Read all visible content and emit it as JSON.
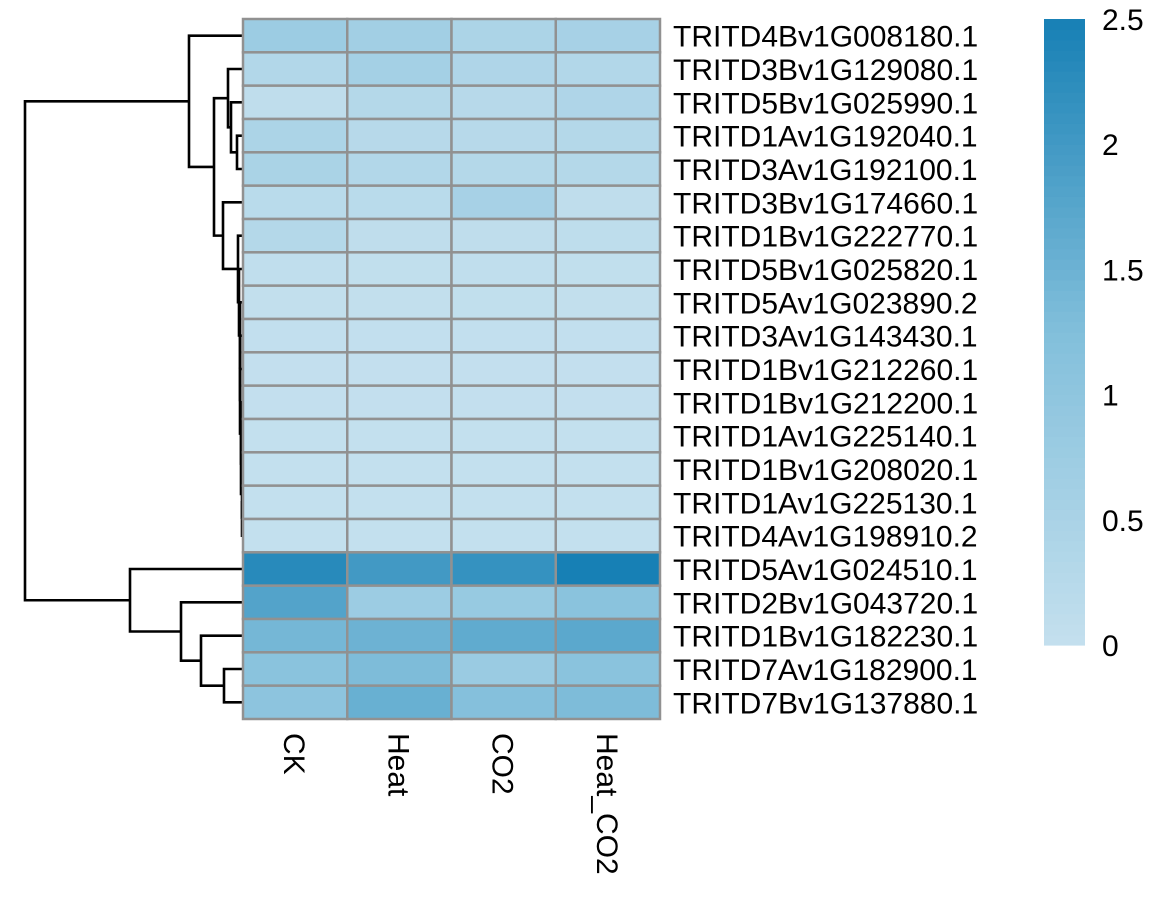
{
  "chart_data": {
    "type": "heatmap",
    "title": "",
    "columns": [
      "CK",
      "Heat",
      "CO2",
      "Heat_CO2"
    ],
    "rows": [
      "TRITD4Bv1G008180.1",
      "TRITD3Bv1G129080.1",
      "TRITD5Bv1G025990.1",
      "TRITD1Av1G192040.1",
      "TRITD3Av1G192100.1",
      "TRITD3Bv1G174660.1",
      "TRITD1Bv1G222770.1",
      "TRITD5Bv1G025820.1",
      "TRITD5Av1G023890.2",
      "TRITD3Av1G143430.1",
      "TRITD1Bv1G212260.1",
      "TRITD1Bv1G212200.1",
      "TRITD1Av1G225140.1",
      "TRITD1Bv1G208020.1",
      "TRITD1Av1G225130.1",
      "TRITD4Av1G198910.2",
      "TRITD5Av1G024510.1",
      "TRITD2Bv1G043720.1",
      "TRITD1Bv1G182230.1",
      "TRITD7Av1G182900.1",
      "TRITD7Bv1G137880.1"
    ],
    "values": [
      [
        0.75,
        0.65,
        0.45,
        0.55
      ],
      [
        0.35,
        0.6,
        0.4,
        0.35
      ],
      [
        0.1,
        0.3,
        0.25,
        0.4
      ],
      [
        0.45,
        0.25,
        0.25,
        0.3
      ],
      [
        0.5,
        0.35,
        0.3,
        0.3
      ],
      [
        0.2,
        0.2,
        0.55,
        0.1
      ],
      [
        0.3,
        0.1,
        0.1,
        0.12
      ],
      [
        0.08,
        0.05,
        0.08,
        0.05
      ],
      [
        0.04,
        0.04,
        0.05,
        0.04
      ],
      [
        0.03,
        0.03,
        0.03,
        0.03
      ],
      [
        0.02,
        0.02,
        0.02,
        0.02
      ],
      [
        0.02,
        0.02,
        0.02,
        0.02
      ],
      [
        0.01,
        0.01,
        0.01,
        0.01
      ],
      [
        0.01,
        0.01,
        0.01,
        0.01
      ],
      [
        0.01,
        0.01,
        0.01,
        0.01
      ],
      [
        0.01,
        0.01,
        0.01,
        0.01
      ],
      [
        2.3,
        2.0,
        2.15,
        2.5
      ],
      [
        1.8,
        0.75,
        0.85,
        1.1
      ],
      [
        1.4,
        1.5,
        1.65,
        1.7
      ],
      [
        1.1,
        1.3,
        0.8,
        1.1
      ],
      [
        1.05,
        1.55,
        1.2,
        1.3
      ]
    ],
    "colorbar": {
      "min": 0,
      "max": 2.5,
      "ticks": [
        0,
        0.5,
        1,
        1.5,
        2,
        2.5
      ],
      "tick_labels": [
        "0",
        "0.5",
        "1",
        "1.5",
        "2",
        "2.5"
      ],
      "low_color": "#c4e0ee",
      "mid_color": "#82bfdb",
      "high_color": "#1780b5"
    },
    "cell_border_color": "#919191",
    "dendrogram": "row",
    "legend_position": "right"
  }
}
